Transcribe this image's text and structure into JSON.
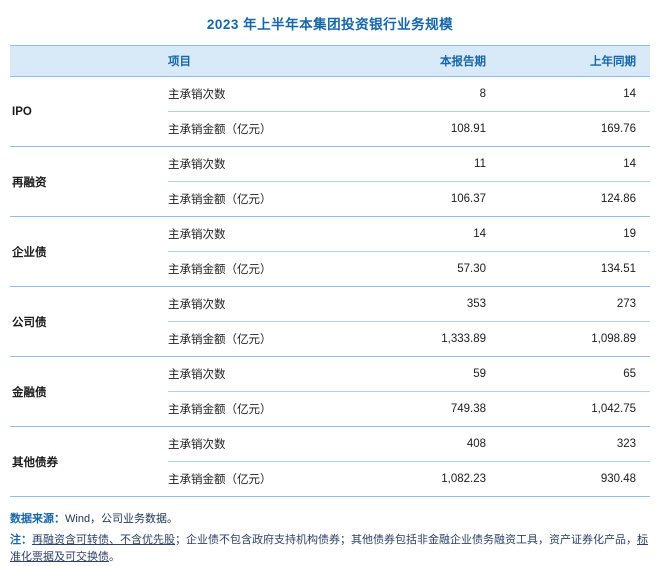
{
  "title": "2023 年上半年本集团投资银行业务规模",
  "colors": {
    "accent_blue": "#1766a8",
    "header_background": "#d8eaf7",
    "table_border_blue": "#8fc0e2",
    "note_text": "#2f4266"
  },
  "table": {
    "headers": {
      "item": "项目",
      "current": "本报告期",
      "prior": "上年同期"
    },
    "groups": [
      {
        "category": "IPO",
        "rows": [
          {
            "label": "主承销次数",
            "current": "8",
            "prior": "14"
          },
          {
            "label": "主承销金额（亿元）",
            "current": "108.91",
            "prior": "169.76"
          }
        ]
      },
      {
        "category": "再融资",
        "rows": [
          {
            "label": "主承销次数",
            "current": "11",
            "prior": "14"
          },
          {
            "label": "主承销金额（亿元）",
            "current": "106.37",
            "prior": "124.86"
          }
        ]
      },
      {
        "category": "企业债",
        "rows": [
          {
            "label": "主承销次数",
            "current": "14",
            "prior": "19"
          },
          {
            "label": "主承销金额（亿元）",
            "current": "57.30",
            "prior": "134.51"
          }
        ]
      },
      {
        "category": "公司债",
        "rows": [
          {
            "label": "主承销次数",
            "current": "353",
            "prior": "273"
          },
          {
            "label": "主承销金额（亿元）",
            "current": "1,333.89",
            "prior": "1,098.89"
          }
        ]
      },
      {
        "category": "金融债",
        "rows": [
          {
            "label": "主承销次数",
            "current": "59",
            "prior": "65"
          },
          {
            "label": "主承销金额（亿元）",
            "current": "749.38",
            "prior": "1,042.75"
          }
        ]
      },
      {
        "category": "其他债券",
        "rows": [
          {
            "label": "主承销次数",
            "current": "408",
            "prior": "323"
          },
          {
            "label": "主承销金额（亿元）",
            "current": "1,082.23",
            "prior": "930.48"
          }
        ]
      }
    ]
  },
  "footer": {
    "source_label": "数据来源：",
    "source_text": "Wind，公司业务数据。",
    "note_label": "注：",
    "note_parts": [
      {
        "text": "再融资含可转债、不含优先股",
        "underline": true
      },
      {
        "text": "；企业债不包含政府支持机构债券；其他债券包括非金融企业债务融资工具，资产证券化产品，",
        "underline": false
      },
      {
        "text": "标准化票据及可交换债",
        "underline": true
      },
      {
        "text": "。",
        "underline": false
      }
    ]
  },
  "chart_data": {
    "type": "table",
    "title": "2023 年上半年本集团投资银行业务规模",
    "columns": [
      "项目",
      "本报告期",
      "上年同期"
    ],
    "rows": [
      {
        "category": "IPO",
        "metric": "主承销次数",
        "current": 8,
        "prior": 14
      },
      {
        "category": "IPO",
        "metric": "主承销金额（亿元）",
        "current": 108.91,
        "prior": 169.76
      },
      {
        "category": "再融资",
        "metric": "主承销次数",
        "current": 11,
        "prior": 14
      },
      {
        "category": "再融资",
        "metric": "主承销金额（亿元）",
        "current": 106.37,
        "prior": 124.86
      },
      {
        "category": "企业债",
        "metric": "主承销次数",
        "current": 14,
        "prior": 19
      },
      {
        "category": "企业债",
        "metric": "主承销金额（亿元）",
        "current": 57.3,
        "prior": 134.51
      },
      {
        "category": "公司债",
        "metric": "主承销次数",
        "current": 353,
        "prior": 273
      },
      {
        "category": "公司债",
        "metric": "主承销金额（亿元）",
        "current": 1333.89,
        "prior": 1098.89
      },
      {
        "category": "金融债",
        "metric": "主承销次数",
        "current": 59,
        "prior": 65
      },
      {
        "category": "金融债",
        "metric": "主承销金额（亿元）",
        "current": 749.38,
        "prior": 1042.75
      },
      {
        "category": "其他债券",
        "metric": "主承销次数",
        "current": 408,
        "prior": 323
      },
      {
        "category": "其他债券",
        "metric": "主承销金额（亿元）",
        "current": 1082.23,
        "prior": 930.48
      }
    ],
    "source": "Wind，公司业务数据",
    "note": "再融资含可转债、不含优先股；企业债不包含政府支持机构债券；其他债券包括非金融企业债务融资工具，资产证券化产品，标准化票据及可交换债。"
  }
}
